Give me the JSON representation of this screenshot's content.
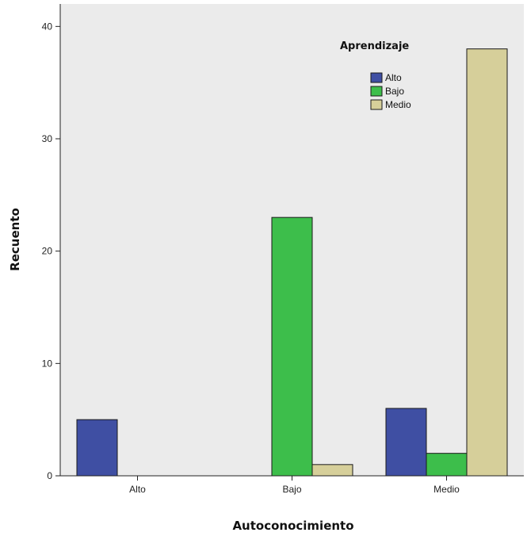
{
  "chart_data": {
    "type": "bar",
    "xlabel": "Autoconocimiento",
    "ylabel": "Recuento",
    "categories": [
      "Alto",
      "Bajo",
      "Medio"
    ],
    "series": [
      {
        "name": "Alto",
        "values": [
          5,
          0,
          6
        ],
        "color": "#3F4FA3"
      },
      {
        "name": "Bajo",
        "values": [
          0,
          23,
          2
        ],
        "color": "#3DBE4B"
      },
      {
        "name": "Medio",
        "values": [
          0,
          1,
          38
        ],
        "color": "#D6CF9A"
      }
    ],
    "ylim": [
      0,
      42
    ],
    "yticks": [
      0,
      10,
      20,
      30,
      40
    ],
    "grid": false,
    "legend": {
      "title": "Aprendizaje",
      "position": "top-right"
    },
    "background": "#EBEBEB"
  }
}
